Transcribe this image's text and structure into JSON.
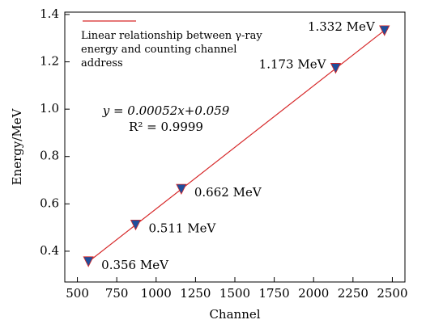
{
  "chart_data": {
    "type": "scatter",
    "xlabel": "Channel",
    "ylabel": "Energy/MeV",
    "xlim": [
      420,
      2580
    ],
    "ylim": [
      0.27,
      1.41
    ],
    "xticks": [
      500,
      750,
      1000,
      1250,
      1500,
      1750,
      2000,
      2250,
      2500
    ],
    "yticks": [
      0.4,
      0.6,
      0.8,
      {
        "value": 1,
        "label": "1.0"
      },
      1.2,
      1.4
    ],
    "series": [
      {
        "x": [
          570,
          870,
          1160,
          2140,
          2450
        ],
        "values": [
          0.356,
          0.511,
          0.662,
          1.173,
          1.332
        ],
        "value_labels": [
          "0.356 MeV",
          "0.511 MeV",
          "0.662 MeV",
          "1.173 MeV",
          "1.332 MeV"
        ],
        "color": "#1f4e9c",
        "edge_color": "#d62728"
      }
    ],
    "fit": {
      "name": "Linear relationship between γ-ray energy and counting channel address",
      "color": "#d62728",
      "x": [
        560,
        2450
      ],
      "values": [
        0.3502,
        1.333
      ]
    },
    "annotations": [
      "y = 0.00052x+0.059",
      "R² = 0.9999"
    ],
    "legend": "upper left"
  }
}
